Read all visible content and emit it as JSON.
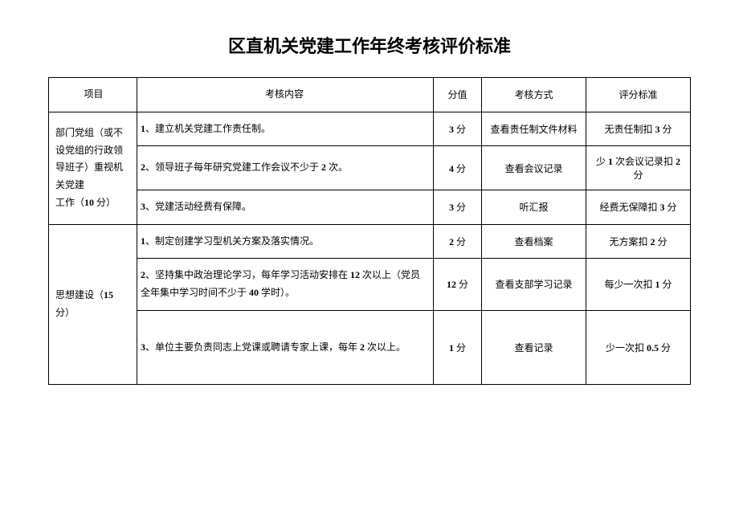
{
  "title": "区直机关党建工作年终考核评价标准",
  "table": {
    "headers": {
      "category": "项目",
      "content": "考核内容",
      "score": "分值",
      "method": "考核方式",
      "standard": "评分标准"
    },
    "section1": {
      "category_line1": "部门党组（或不",
      "category_line2": "设党组的行政领",
      "category_line3": "导班子）重视机",
      "category_line4": "关党建",
      "category_line5": "工作（",
      "category_points": "10",
      "category_line5_suffix": " 分）",
      "row1": {
        "num": "1",
        "content": "、建立机关党建工作责任制。",
        "score_num": "3",
        "score_unit": " 分",
        "method": "查看责任制文件材料",
        "standard_prefix": "无责任制扣 ",
        "standard_num": "3",
        "standard_suffix": " 分"
      },
      "row2": {
        "num": "2",
        "content_prefix": "、领导班子每年研究党建工作会议不少于 ",
        "content_num": "2",
        "content_suffix": " 次。",
        "score_num": "4",
        "score_unit": " 分",
        "method": "查看会议记录",
        "standard_prefix": "少 ",
        "standard_num1": "1",
        "standard_mid": " 次会议记录扣 ",
        "standard_num2": "2",
        "standard_suffix": " 分"
      },
      "row3": {
        "num": "3",
        "content": "、党建活动经费有保障。",
        "score_num": "3",
        "score_unit": " 分",
        "method": "听汇报",
        "standard_prefix": "经费无保障扣 ",
        "standard_num": "3",
        "standard_suffix": " 分"
      }
    },
    "section2": {
      "category_line1": "思想建设（",
      "category_points": "15",
      "category_line2": "分）",
      "row1": {
        "num": "1",
        "content": "、制定创建学习型机关方案及落实情况。",
        "score_num": "2",
        "score_unit": " 分",
        "method": "查看档案",
        "standard_prefix": "无方案扣 ",
        "standard_num": "2",
        "standard_suffix": " 分"
      },
      "row2": {
        "num": "2",
        "content_prefix": "、坚持集中政治理论学习，每年学习活动安排在 ",
        "content_num1": "12",
        "content_mid": " 次以上（党员全年集中学习时间不少于 ",
        "content_num2": "40",
        "content_suffix": " 学时）。",
        "score_num": "12",
        "score_unit": " 分",
        "method": "查看支部学习记录",
        "standard_prefix": "每少一次扣 ",
        "standard_num": "1",
        "standard_suffix": " 分"
      },
      "row3": {
        "num": "3",
        "content_prefix": "、单位主要负责同志上党课或聘请专家上课，每年 ",
        "content_num": "2",
        "content_suffix": " 次以上。",
        "score_num": "1",
        "score_unit": " 分",
        "method": "查看记录",
        "standard_prefix": "少一次扣 ",
        "standard_num": "0.5",
        "standard_suffix": " 分"
      }
    }
  },
  "style": {
    "background_color": "#ffffff",
    "border_color": "#000000",
    "text_color": "#000000",
    "title_fontsize": 22,
    "cell_fontsize": 12
  }
}
